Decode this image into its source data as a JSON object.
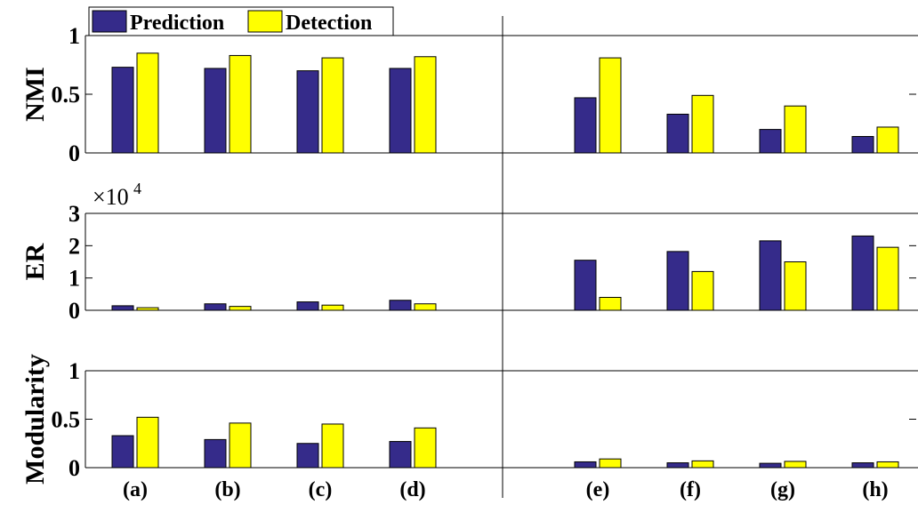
{
  "chart_data": {
    "type": "bar",
    "categories": [
      "(a)",
      "(b)",
      "(c)",
      "(d)",
      "",
      "(e)",
      "(f)",
      "(g)",
      "(h)"
    ],
    "legend": [
      {
        "name": "Prediction",
        "color": "#352b8a"
      },
      {
        "name": "Detection",
        "color": "#ffff00"
      }
    ],
    "legend_placement": "top-left",
    "colors": {
      "prediction": "#352b8a",
      "detection": "#ffff00",
      "edge": "#000000"
    },
    "panels": [
      {
        "ylabel": "NMI",
        "ylim": [
          0,
          1
        ],
        "yticks": [
          0,
          0.5,
          1
        ],
        "ytick_labels": [
          "0",
          "0.5",
          "1"
        ],
        "exponent_label": "",
        "series": [
          {
            "name": "Prediction",
            "values": [
              0.73,
              0.72,
              0.7,
              0.72,
              0,
              0.47,
              0.33,
              0.2,
              0.14
            ]
          },
          {
            "name": "Detection",
            "values": [
              0.85,
              0.83,
              0.81,
              0.82,
              0,
              0.81,
              0.49,
              0.4,
              0.22
            ]
          }
        ]
      },
      {
        "ylabel": "ER",
        "ylim": [
          0,
          30000
        ],
        "yticks": [
          0,
          10000,
          20000,
          30000
        ],
        "ytick_labels": [
          "0",
          "1",
          "2",
          "3"
        ],
        "exponent_label": "×10",
        "exponent_power": "4",
        "series": [
          {
            "name": "Prediction",
            "values": [
              1400,
              2000,
              2600,
              3100,
              0,
              15500,
              18200,
              21500,
              23000
            ]
          },
          {
            "name": "Detection",
            "values": [
              800,
              1200,
              1600,
              2000,
              0,
              4000,
              12000,
              15000,
              19500
            ]
          }
        ]
      },
      {
        "ylabel": "Modularity",
        "ylim": [
          0,
          1
        ],
        "yticks": [
          0,
          0.5,
          1
        ],
        "ytick_labels": [
          "0",
          "0.5",
          "1"
        ],
        "exponent_label": "",
        "series": [
          {
            "name": "Prediction",
            "values": [
              0.33,
              0.29,
              0.25,
              0.27,
              0,
              0.06,
              0.05,
              0.045,
              0.05
            ]
          },
          {
            "name": "Detection",
            "values": [
              0.52,
              0.46,
              0.45,
              0.41,
              0,
              0.09,
              0.07,
              0.065,
              0.06
            ]
          }
        ]
      }
    ]
  }
}
